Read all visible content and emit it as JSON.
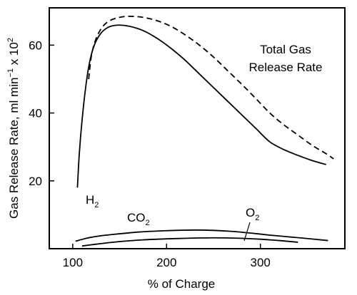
{
  "chart_data": {
    "type": "line",
    "xlabel": "% of Charge",
    "ylabel": "Gas Release Rate, ml min",
    "ylabel_sup": "−1",
    "ylabel_tail": " x 10",
    "ylabel_sup2": "2",
    "xlim": [
      75,
      390
    ],
    "ylim": [
      0,
      71
    ],
    "x_ticks": [
      100,
      200,
      300
    ],
    "y_ticks": [
      20,
      40,
      60
    ],
    "grid": false,
    "legend": "none",
    "series": [
      {
        "style": "dashed",
        "values": [
          [
            117,
            50
          ],
          [
            120,
            57
          ],
          [
            125,
            62
          ],
          [
            132,
            65.5
          ],
          [
            140,
            67.3
          ],
          [
            150,
            68.2
          ],
          [
            160,
            68.5
          ],
          [
            175,
            68.2
          ],
          [
            190,
            67.2
          ],
          [
            205,
            65.5
          ],
          [
            220,
            63
          ],
          [
            235,
            60
          ],
          [
            250,
            56.5
          ],
          [
            265,
            52.5
          ],
          [
            280,
            48.5
          ],
          [
            295,
            44.3
          ],
          [
            310,
            40
          ],
          [
            325,
            36.5
          ],
          [
            340,
            33.5
          ],
          [
            355,
            30.5
          ],
          [
            370,
            28
          ],
          [
            378,
            26.5
          ]
        ]
      },
      {
        "style": "solid",
        "values": [
          [
            105,
            18
          ],
          [
            107,
            28
          ],
          [
            110,
            38
          ],
          [
            114,
            48
          ],
          [
            118,
            55
          ],
          [
            123,
            60
          ],
          [
            130,
            63.5
          ],
          [
            138,
            65.3
          ],
          [
            148,
            65.9
          ],
          [
            160,
            65.6
          ],
          [
            175,
            64.3
          ],
          [
            190,
            62
          ],
          [
            205,
            59
          ],
          [
            220,
            55.5
          ],
          [
            235,
            51.5
          ],
          [
            250,
            47.5
          ],
          [
            265,
            43.5
          ],
          [
            280,
            39.5
          ],
          [
            295,
            35.5
          ],
          [
            310,
            31.5
          ],
          [
            325,
            29.2
          ],
          [
            340,
            27.5
          ],
          [
            355,
            26
          ],
          [
            370,
            24.8
          ]
        ]
      },
      {
        "style": "solid",
        "values": [
          [
            103,
            2.2
          ],
          [
            115,
            3.1
          ],
          [
            130,
            3.8
          ],
          [
            150,
            4.4
          ],
          [
            170,
            4.9
          ],
          [
            190,
            5.2
          ],
          [
            210,
            5.4
          ],
          [
            230,
            5.5
          ],
          [
            250,
            5.4
          ],
          [
            270,
            5.1
          ],
          [
            290,
            4.6
          ],
          [
            310,
            4
          ],
          [
            330,
            3.5
          ],
          [
            350,
            3
          ],
          [
            372,
            2.4
          ]
        ]
      },
      {
        "style": "solid",
        "values": [
          [
            110,
            0.8
          ],
          [
            130,
            1.5
          ],
          [
            150,
            2.1
          ],
          [
            175,
            2.6
          ],
          [
            200,
            2.9
          ],
          [
            225,
            3.1
          ],
          [
            250,
            3.2
          ],
          [
            275,
            3.1
          ],
          [
            300,
            2.8
          ],
          [
            320,
            2.4
          ],
          [
            340,
            1.9
          ]
        ]
      }
    ],
    "annotations": [
      {
        "id": "total",
        "lines": [
          "Total Gas",
          "Release Rate"
        ]
      },
      {
        "id": "h2",
        "text": "H",
        "sub": "2"
      },
      {
        "id": "co2",
        "text": "CO",
        "sub": "2"
      },
      {
        "id": "o2",
        "text": "O",
        "sub": "2"
      }
    ]
  }
}
